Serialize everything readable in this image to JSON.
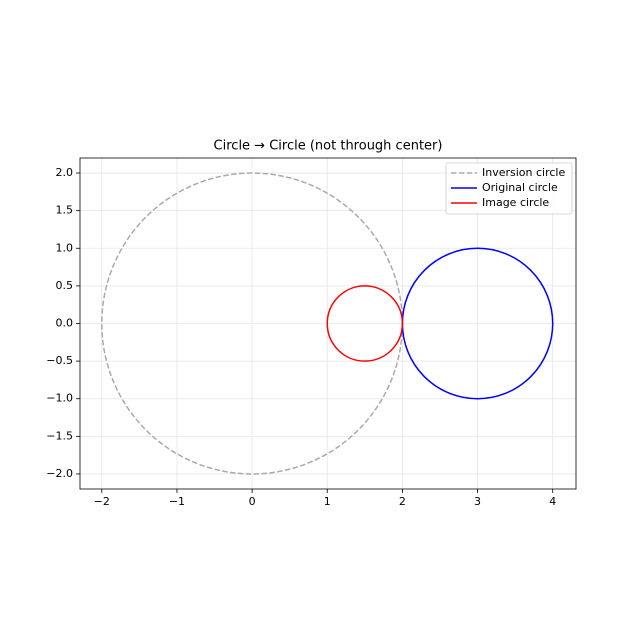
{
  "chart_data": {
    "type": "circle",
    "title": "Circle → Circle (not through center)",
    "series": [
      {
        "name": "Inversion circle",
        "color": "#aaaaaa",
        "linestyle": "dashed",
        "cx": 0,
        "cy": 0,
        "r": 2
      },
      {
        "name": "Original circle",
        "color": "#0000ff",
        "linestyle": "solid",
        "cx": 3,
        "cy": 0,
        "r": 1
      },
      {
        "name": "Image circle",
        "color": "#ff0000",
        "linestyle": "solid",
        "cx": 1.5,
        "cy": 0,
        "r": 0.5
      }
    ],
    "xlim": [
      -2.29,
      4.31
    ],
    "ylim": [
      -2.2,
      2.2
    ],
    "xticks": [
      {
        "value": -2,
        "label": "−2"
      },
      {
        "value": -1,
        "label": "−1"
      },
      0,
      1,
      2,
      3,
      4
    ],
    "yticks": [
      {
        "value": 2,
        "label": "2.0"
      },
      {
        "value": 1.5,
        "label": "1.5"
      },
      {
        "value": 1,
        "label": "1.0"
      },
      {
        "value": 0.5,
        "label": "0.5"
      },
      {
        "value": 0,
        "label": "0.0"
      },
      {
        "value": -0.5,
        "label": "−0.5"
      },
      {
        "value": -1,
        "label": "−1.0"
      },
      {
        "value": -1.5,
        "label": "−1.5"
      },
      {
        "value": -2,
        "label": "−2.0"
      }
    ],
    "grid": true,
    "legend": "upper right"
  }
}
